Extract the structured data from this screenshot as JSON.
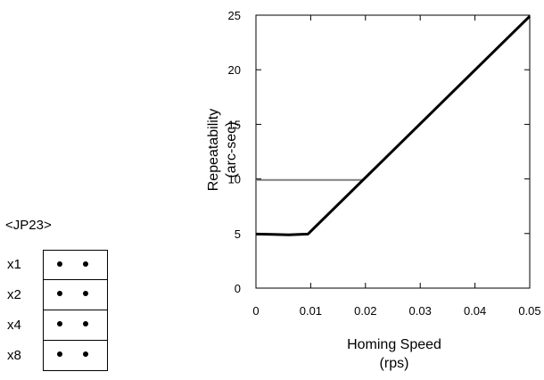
{
  "jumper": {
    "title": "<JP23>",
    "rows": [
      {
        "label": "x1"
      },
      {
        "label": "x2"
      },
      {
        "label": "x4"
      },
      {
        "label": "x8"
      }
    ]
  },
  "chart_data": {
    "type": "line",
    "title": "",
    "xlabel": "Homing Speed",
    "xlabel_unit": "(rps)",
    "ylabel": "Repeatability",
    "ylabel_unit": "(arc-sec)",
    "xlim": [
      0,
      0.05
    ],
    "ylim": [
      0,
      25
    ],
    "x_ticks": [
      "0",
      "0.01",
      "0.02",
      "0.03",
      "0.04",
      "0.05"
    ],
    "y_ticks": [
      "0",
      "5",
      "10",
      "15",
      "20",
      "25"
    ],
    "grid": false,
    "series": [
      {
        "color": "#000000",
        "points": [
          [
            0,
            4.95
          ],
          [
            0.003,
            4.92
          ],
          [
            0.006,
            4.88
          ],
          [
            0.0095,
            4.95
          ],
          [
            0.05,
            24.9
          ]
        ]
      },
      {
        "color": "#808080",
        "points": [
          [
            0,
            9.9
          ],
          [
            0.0195,
            9.9
          ]
        ]
      }
    ]
  }
}
